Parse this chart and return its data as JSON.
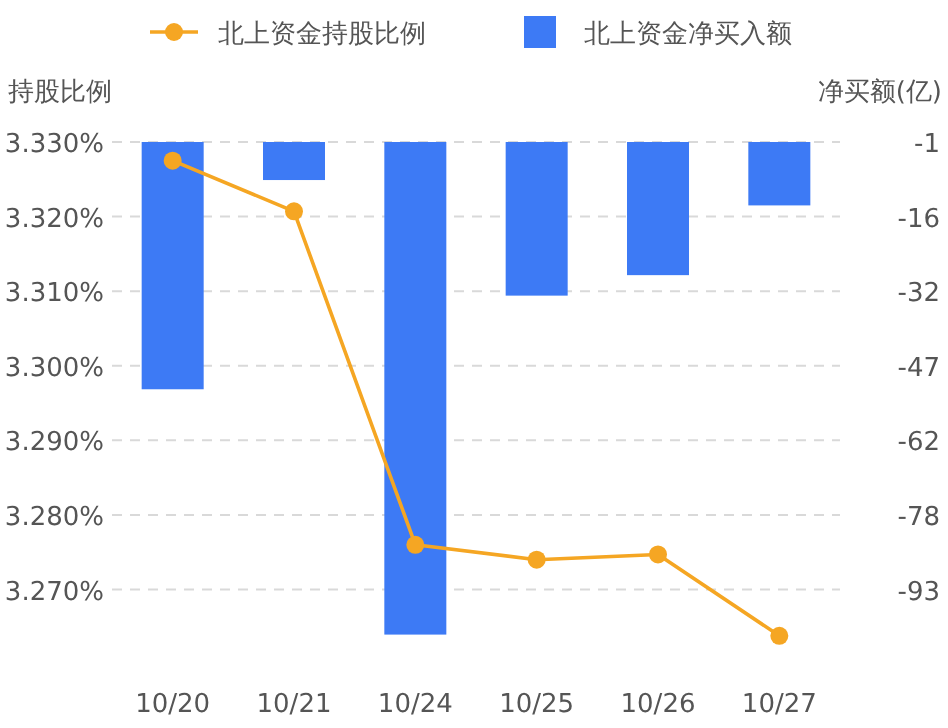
{
  "chart_data": {
    "type": "bar",
    "categories": [
      "10/20",
      "10/21",
      "10/24",
      "10/25",
      "10/26",
      "10/27"
    ],
    "series": [
      {
        "name": "北上资金持股比例",
        "type": "line",
        "color": "#f5a623",
        "values": [
          3.3275,
          3.3207,
          3.276,
          3.274,
          3.2747,
          3.2638
        ]
      },
      {
        "name": "北上资金净买入额",
        "axis": "y2",
        "color": "#3d7af5",
        "values": [
          -51.7,
          -8.8,
          -102,
          -32.5,
          -28.3,
          -14.0
        ]
      }
    ],
    "ylabel": "持股比例",
    "y2label": "净买额(亿)",
    "ylim": [
      3.2635,
      3.33
    ],
    "yticks": [
      {
        "value": 3.33,
        "label": "3.330%"
      },
      {
        "value": 3.32,
        "label": "3.320%"
      },
      {
        "value": 3.31,
        "label": "3.310%"
      },
      {
        "value": 3.3,
        "label": "3.300%"
      },
      {
        "value": 3.29,
        "label": "3.290%"
      },
      {
        "value": 3.28,
        "label": "3.280%"
      },
      {
        "value": 3.27,
        "label": "3.270%"
      }
    ],
    "y2lim": [
      -102.7,
      -1
    ],
    "y2ticks": [
      -1,
      {
        "value": -16.3,
        "label": "-16"
      },
      {
        "value": -31.6,
        "label": "-32"
      },
      {
        "value": -46.9,
        "label": "-47"
      },
      {
        "value": -62.2,
        "label": "-62"
      },
      {
        "value": -77.5,
        "label": "-78"
      },
      {
        "value": -92.8,
        "label": "-93"
      }
    ],
    "grid": "y",
    "legend": "top",
    "marker": "circle"
  }
}
